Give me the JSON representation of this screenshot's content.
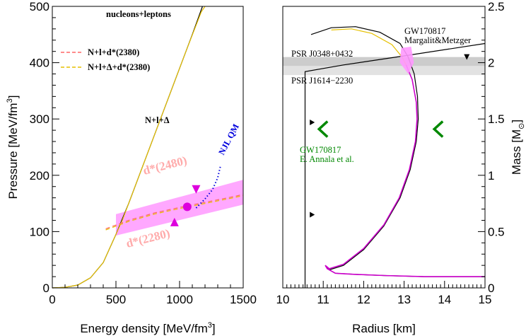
{
  "chart_data": [
    {
      "type": "line",
      "xlabel": "Energy density [MeV/fm",
      "xlabel_sup": "3",
      "xlabel_end": "]",
      "ylabel": "Pressure [MeV/fm",
      "ylabel_sup": "3",
      "ylabel_end": "]",
      "xlim": [
        0,
        1500
      ],
      "ylim": [
        0,
        500
      ],
      "xticks": [
        "0",
        "500",
        "1000",
        "1500"
      ],
      "yticks": [
        "0",
        "100",
        "200",
        "300",
        "400",
        "500"
      ],
      "grid": false,
      "legend_position": "left",
      "legend": [
        {
          "label": "N+l+d*(2380)",
          "color": "#ff6666",
          "style": "dashed"
        },
        {
          "label": "N+l+Δ+d*(2380)",
          "color": "#e6c000",
          "style": "dashed"
        }
      ],
      "labels": {
        "nucleons": "nucleons+leptons",
        "n_l_delta": "N+l+Δ",
        "d2480": "d*(2480)",
        "d2280": "d*(2280)",
        "njl": "NJL QM"
      },
      "series": [
        {
          "color": "#000000",
          "points": [
            [
              0,
              0
            ],
            [
              100,
              1
            ],
            [
              200,
              5
            ],
            [
              300,
              18
            ],
            [
              400,
              45
            ],
            [
              500,
              95
            ],
            [
              600,
              150
            ],
            [
              700,
              210
            ],
            [
              800,
              270
            ],
            [
              900,
              330
            ],
            [
              1000,
              390
            ],
            [
              1100,
              450
            ],
            [
              1180,
              500
            ]
          ]
        },
        {
          "color": "#e6c000",
          "points": [
            [
              0,
              0
            ],
            [
              100,
              1
            ],
            [
              200,
              5
            ],
            [
              300,
              18
            ],
            [
              400,
              45
            ],
            [
              480,
              85
            ],
            [
              550,
              120
            ],
            [
              650,
              180
            ],
            [
              750,
              240
            ],
            [
              850,
              300
            ],
            [
              950,
              360
            ],
            [
              1050,
              420
            ],
            [
              1170,
              490
            ],
            [
              1200,
              500
            ]
          ]
        },
        {
          "color": "#ff6666",
          "style": "dashed",
          "points": [
            [
              420,
              105
            ],
            [
              600,
              120
            ],
            [
              800,
              133
            ],
            [
              1000,
              143
            ],
            [
              1200,
              152
            ],
            [
              1400,
              161
            ],
            [
              1500,
              166
            ]
          ]
        },
        {
          "color": "#e6c000",
          "style": "dashed",
          "points": [
            [
              420,
              103
            ],
            [
              600,
              118
            ],
            [
              800,
              131
            ],
            [
              1000,
              141
            ],
            [
              1200,
              150
            ],
            [
              1400,
              159
            ],
            [
              1500,
              164
            ]
          ]
        },
        {
          "color": "#0000dd",
          "style": "dotted",
          "points": [
            [
              1130,
              142
            ],
            [
              1200,
              158
            ],
            [
              1260,
              175
            ],
            [
              1300,
              196
            ],
            [
              1320,
              215
            ]
          ]
        }
      ],
      "band": {
        "color": "#ff99ff",
        "lower": [
          [
            500,
            93
          ],
          [
            1500,
            148
          ]
        ],
        "upper": [
          [
            500,
            131
          ],
          [
            1500,
            192
          ]
        ]
      },
      "markers": [
        {
          "shape": "circle",
          "x": 1060,
          "y": 144,
          "color": "#dd00dd"
        },
        {
          "shape": "triangle-down",
          "x": 1130,
          "y": 175,
          "color": "#dd00dd"
        },
        {
          "shape": "triangle-up",
          "x": 960,
          "y": 117,
          "color": "#dd00dd"
        }
      ]
    },
    {
      "type": "line",
      "xlabel": "Radius [km]",
      "ylabel": "Mass [M",
      "ylabel_sub": "⊙",
      "ylabel_end": "]",
      "xlim": [
        10,
        15
      ],
      "ylim": [
        0,
        2.5
      ],
      "xticks": [
        "10",
        "11",
        "12",
        "13",
        "14",
        "15"
      ],
      "yticks": [
        "0",
        "0.5",
        "1",
        "1.5",
        "2",
        "2.5"
      ],
      "grid": false,
      "labels": {
        "psr0348": "PSR J0348+0432",
        "psr1614": "PSR J1614−2230",
        "gw_margalit_1": "GW170817",
        "gw_margalit_2": "Margalit&Metzger",
        "gw_annala_1": "GW170817",
        "gw_annala_2": "E. Annala et al."
      },
      "bands": [
        {
          "name": "psr0348",
          "range": [
            1.97,
            2.05
          ],
          "color": "#cccccc"
        },
        {
          "name": "psr1614",
          "range": [
            1.89,
            1.97
          ],
          "color": "#e2e2e2"
        }
      ],
      "series": [
        {
          "color": "#000000",
          "points": [
            [
              10.7,
              2.25
            ],
            [
              11.2,
              2.31
            ],
            [
              11.8,
              2.32
            ],
            [
              12.4,
              2.27
            ],
            [
              12.9,
              2.17
            ],
            [
              13.1,
              2.05
            ],
            [
              13.25,
              1.9
            ],
            [
              13.33,
              1.7
            ],
            [
              13.35,
              1.5
            ],
            [
              13.3,
              1.3
            ],
            [
              13.15,
              1.05
            ],
            [
              12.9,
              0.8
            ],
            [
              12.5,
              0.55
            ],
            [
              12.0,
              0.34
            ],
            [
              11.5,
              0.2
            ],
            [
              11.15,
              0.16
            ],
            [
              11.05,
              0.2
            ],
            [
              11.1,
              0.17
            ],
            [
              11.3,
              0.13
            ],
            [
              11.8,
              0.12
            ],
            [
              12.5,
              0.11
            ],
            [
              13.5,
              0.1
            ],
            [
              14.5,
              0.1
            ],
            [
              15,
              0.1
            ]
          ]
        },
        {
          "color": "#e6c000",
          "points": [
            [
              11.2,
              2.29
            ],
            [
              11.7,
              2.3
            ],
            [
              12.2,
              2.26
            ],
            [
              12.7,
              2.16
            ],
            [
              12.95,
              2.05
            ],
            [
              13.05,
              1.98
            ]
          ]
        },
        {
          "color": "#cc00cc",
          "points": [
            [
              13.05,
              1.98
            ],
            [
              13.2,
              1.85
            ],
            [
              13.3,
              1.65
            ],
            [
              13.32,
              1.5
            ],
            [
              13.28,
              1.3
            ],
            [
              13.13,
              1.05
            ],
            [
              12.88,
              0.8
            ],
            [
              12.5,
              0.56
            ],
            [
              12.0,
              0.35
            ],
            [
              11.5,
              0.21
            ],
            [
              11.15,
              0.17
            ],
            [
              11.05,
              0.2
            ],
            [
              11.1,
              0.17
            ],
            [
              11.3,
              0.13
            ],
            [
              11.8,
              0.12
            ],
            [
              12.5,
              0.11
            ],
            [
              13.5,
              0.1
            ],
            [
              14.5,
              0.1
            ],
            [
              15,
              0.1
            ]
          ]
        },
        {
          "color": "#000000",
          "points": [
            [
              10.55,
              0.0
            ],
            [
              10.55,
              1.92
            ],
            [
              11.5,
              1.98
            ],
            [
              13.0,
              2.06
            ],
            [
              15,
              2.17
            ]
          ]
        }
      ],
      "markers": [
        {
          "shape": "triangle-right",
          "x": 10.72,
          "y": 1.47,
          "color": "#000000"
        },
        {
          "shape": "triangle-right",
          "x": 10.72,
          "y": 0.65,
          "color": "#000000"
        },
        {
          "shape": "triangle-down",
          "x": 14.55,
          "y": 2.05,
          "color": "#000000"
        },
        {
          "shape": "chevron-left",
          "x": 11.0,
          "y": 1.41,
          "color": "#008800"
        },
        {
          "shape": "chevron-left",
          "x": 13.85,
          "y": 1.41,
          "color": "#008800"
        }
      ],
      "arrow": {
        "from": [
          13.05,
          2.13
        ],
        "to": [
          13.05,
          1.95
        ],
        "color": "#ff99ff"
      }
    }
  ]
}
